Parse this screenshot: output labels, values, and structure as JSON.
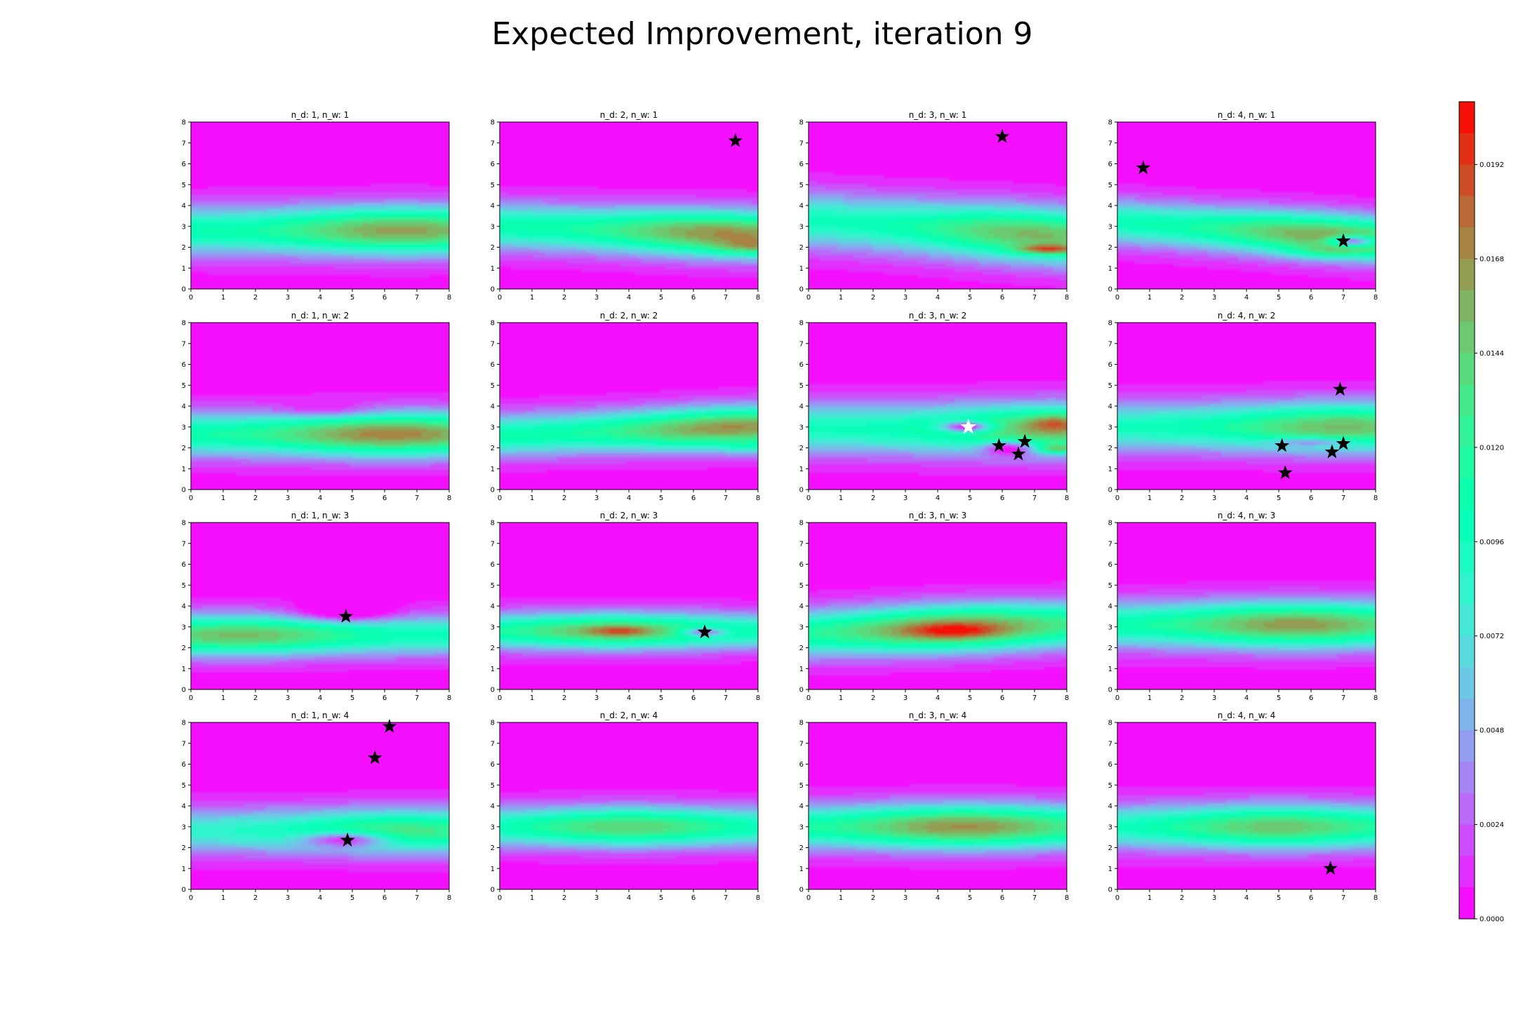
{
  "chart_data": {
    "type": "heatmap",
    "plot_kind": "filled contour grid",
    "title": "Expected Improvement, iteration 9",
    "rows": 4,
    "cols": 4,
    "xlim": [
      0,
      8
    ],
    "ylim": [
      0,
      8
    ],
    "x_ticks": [
      "0",
      "1",
      "2",
      "3",
      "4",
      "5",
      "6",
      "7",
      "8"
    ],
    "y_ticks": [
      "0",
      "1",
      "2",
      "3",
      "4",
      "5",
      "6",
      "7",
      "8"
    ],
    "colormap": "rainbow",
    "colorbar": {
      "min": 0.0,
      "max": 0.0208,
      "ticks": [
        "0.0000",
        "0.0024",
        "0.0048",
        "0.0072",
        "0.0096",
        "0.0120",
        "0.0144",
        "0.0168",
        "0.0192"
      ],
      "tick_values": [
        0.0,
        0.0024,
        0.0048,
        0.0072,
        0.0096,
        0.012,
        0.0144,
        0.0168,
        0.0192
      ],
      "levels": 26
    },
    "panels": [
      {
        "title": "n_d: 1, n_w: 1",
        "stars": [],
        "white_stars": [],
        "band": {
          "center": 2.8,
          "width": 1.15,
          "peak": 0.016,
          "peak_x": 6.5,
          "slope": 0
        },
        "hots": [],
        "cold": []
      },
      {
        "title": "n_d: 2, n_w: 1",
        "stars": [
          [
            7.3,
            7.1
          ]
        ],
        "white_stars": [],
        "band": {
          "center": 2.8,
          "width": 1.1,
          "peak": 0.0165,
          "peak_x": 7.0,
          "slope": -0.05
        },
        "hots": [
          {
            "x": 7.8,
            "y": 2.0,
            "sx": 1.2,
            "sy": 0.35,
            "a": 0.004
          }
        ],
        "cold": []
      },
      {
        "title": "n_d: 3, n_w: 1",
        "stars": [
          [
            6.0,
            7.3
          ]
        ],
        "white_stars": [],
        "band": {
          "center": 2.9,
          "width": 1.3,
          "peak": 0.015,
          "peak_x": 7.0,
          "slope": -0.1
        },
        "hots": [
          {
            "x": 7.4,
            "y": 1.9,
            "sx": 1.0,
            "sy": 0.22,
            "a": 0.0075
          }
        ],
        "cold": []
      },
      {
        "title": "n_d: 4, n_w: 1",
        "stars": [
          [
            0.8,
            5.8
          ],
          [
            7.0,
            2.3
          ]
        ],
        "white_stars": [],
        "band": {
          "center": 2.8,
          "width": 1.05,
          "peak": 0.0158,
          "peak_x": 6.5,
          "slope": -0.1
        },
        "hots": [
          {
            "x": 6.6,
            "y": 1.8,
            "sx": 1.3,
            "sy": 0.3,
            "a": 0.004
          }
        ],
        "cold": [
          {
            "x": 7.3,
            "y": 2.3,
            "sx": 0.7,
            "sy": 0.25,
            "a": 0.012
          }
        ]
      },
      {
        "title": "n_d: 1, n_w: 2",
        "stars": [],
        "white_stars": [],
        "band": {
          "center": 2.65,
          "width": 1.05,
          "peak": 0.017,
          "peak_x": 6.2,
          "slope": 0
        },
        "hots": [],
        "cold": [
          {
            "x": 4.2,
            "y": 3.8,
            "sx": 1.5,
            "sy": 0.4,
            "a": 0.003
          }
        ]
      },
      {
        "title": "n_d: 2, n_w: 2",
        "stars": [],
        "white_stars": [],
        "band": {
          "center": 2.8,
          "width": 1.0,
          "peak": 0.0165,
          "peak_x": 7.2,
          "slope": 0.05
        },
        "hots": [
          {
            "x": 7.7,
            "y": 2.0,
            "sx": 0.8,
            "sy": 0.3,
            "a": 0.003
          }
        ],
        "cold": []
      },
      {
        "title": "n_d: 3, n_w: 2",
        "stars": [
          [
            5.9,
            2.1
          ],
          [
            6.5,
            1.7
          ],
          [
            6.7,
            2.3
          ]
        ],
        "white_stars": [
          [
            4.95,
            3.0
          ]
        ],
        "band": {
          "center": 2.9,
          "width": 1.2,
          "peak": 0.015,
          "peak_x": 7.5,
          "slope": 0
        },
        "hots": [
          {
            "x": 7.6,
            "y": 3.2,
            "sx": 0.8,
            "sy": 0.4,
            "a": 0.004
          },
          {
            "x": 7.7,
            "y": 1.95,
            "sx": 0.6,
            "sy": 0.2,
            "a": 0.007
          }
        ],
        "cold": [
          {
            "x": 4.9,
            "y": 3.0,
            "sx": 0.8,
            "sy": 0.25,
            "a": 0.012
          },
          {
            "x": 6.2,
            "y": 2.0,
            "sx": 0.8,
            "sy": 0.35,
            "a": 0.008
          }
        ]
      },
      {
        "title": "n_d: 4, n_w: 2",
        "stars": [
          [
            6.9,
            4.8
          ],
          [
            5.1,
            2.1
          ],
          [
            7.0,
            2.2
          ],
          [
            6.65,
            1.8
          ],
          [
            5.2,
            0.8
          ]
        ],
        "white_stars": [],
        "band": {
          "center": 3.0,
          "width": 1.15,
          "peak": 0.015,
          "peak_x": 7.0,
          "slope": 0
        },
        "hots": [],
        "cold": [
          {
            "x": 6.0,
            "y": 2.3,
            "sx": 1.2,
            "sy": 0.2,
            "a": 0.006
          }
        ]
      },
      {
        "title": "n_d: 1, n_w: 3",
        "stars": [
          [
            4.8,
            3.5
          ]
        ],
        "white_stars": [],
        "band": {
          "center": 2.6,
          "width": 0.95,
          "peak": 0.015,
          "peak_x": 1.5,
          "slope": 0
        },
        "hots": [],
        "cold": [
          {
            "x": 4.8,
            "y": 3.7,
            "sx": 1.4,
            "sy": 0.45,
            "a": 0.006
          }
        ]
      },
      {
        "title": "n_d: 2, n_w: 3",
        "stars": [
          [
            6.35,
            2.75
          ]
        ],
        "white_stars": [],
        "band": {
          "center": 2.8,
          "width": 0.85,
          "peak": 0.0148,
          "peak_x": 3.5,
          "slope": 0
        },
        "hots": [
          {
            "x": 3.7,
            "y": 2.8,
            "sx": 1.0,
            "sy": 0.25,
            "a": 0.004
          }
        ],
        "cold": [
          {
            "x": 6.3,
            "y": 2.75,
            "sx": 0.7,
            "sy": 0.2,
            "a": 0.009
          }
        ]
      },
      {
        "title": "n_d: 3, n_w: 3",
        "stars": [],
        "white_stars": [],
        "band": {
          "center": 2.9,
          "width": 1.1,
          "peak": 0.017,
          "peak_x": 4.5,
          "slope": 0.05
        },
        "hots": [
          {
            "x": 4.5,
            "y": 2.8,
            "sx": 1.4,
            "sy": 0.35,
            "a": 0.004
          }
        ],
        "cold": []
      },
      {
        "title": "n_d: 4, n_w: 3",
        "stars": [],
        "white_stars": [],
        "band": {
          "center": 3.1,
          "width": 1.1,
          "peak": 0.0162,
          "peak_x": 5.5,
          "slope": 0
        },
        "hots": [],
        "cold": []
      },
      {
        "title": "n_d: 1, n_w: 4",
        "stars": [
          [
            6.15,
            7.8
          ],
          [
            5.7,
            6.3
          ],
          [
            4.85,
            2.35
          ]
        ],
        "white_stars": [],
        "band": {
          "center": 2.8,
          "width": 1.05,
          "peak": 0.013,
          "peak_x": 6.5,
          "slope": 0
        },
        "hots": [],
        "cold": [
          {
            "x": 4.8,
            "y": 2.4,
            "sx": 1.3,
            "sy": 0.35,
            "a": 0.009
          }
        ]
      },
      {
        "title": "n_d: 2, n_w: 4",
        "stars": [],
        "white_stars": [],
        "band": {
          "center": 3.0,
          "width": 0.95,
          "peak": 0.014,
          "peak_x": 4.0,
          "slope": 0
        },
        "hots": [],
        "cold": []
      },
      {
        "title": "n_d: 3, n_w: 4",
        "stars": [],
        "white_stars": [],
        "band": {
          "center": 3.0,
          "width": 1.05,
          "peak": 0.0165,
          "peak_x": 4.8,
          "slope": 0
        },
        "hots": [],
        "cold": []
      },
      {
        "title": "n_d: 4, n_w: 4",
        "stars": [
          [
            6.6,
            1.0
          ]
        ],
        "white_stars": [],
        "band": {
          "center": 3.0,
          "width": 1.05,
          "peak": 0.0145,
          "peak_x": 5.0,
          "slope": 0
        },
        "hots": [],
        "cold": []
      }
    ]
  }
}
